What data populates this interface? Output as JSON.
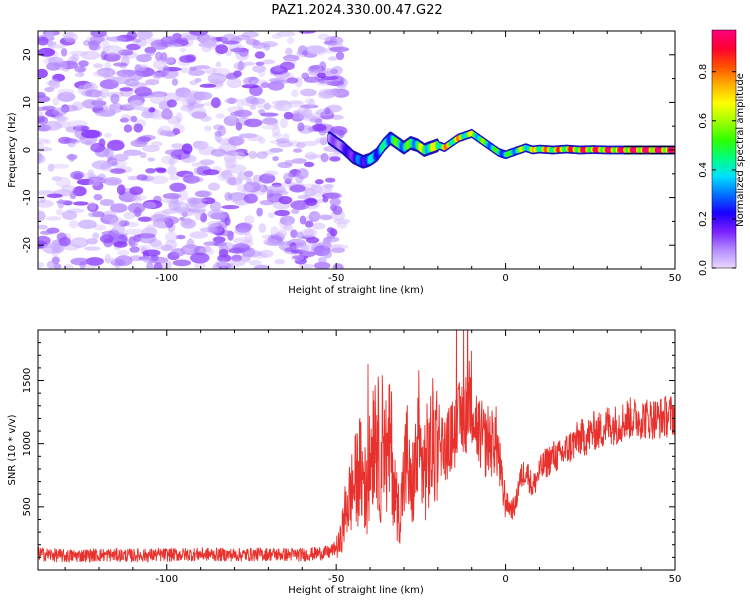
{
  "title": "PAZ1.2024.330.00.47.G22",
  "chart_data": [
    {
      "type": "heatmap",
      "xlabel": "Height of straight line (km)",
      "ylabel": "Frequency (Hz)",
      "xlim": [
        -138,
        50
      ],
      "ylim": [
        -25,
        25
      ],
      "xticks": [
        -100,
        -50,
        0,
        50
      ],
      "yticks": [
        -20,
        -10,
        0,
        10,
        20
      ],
      "colorbar": {
        "label": "Normalized spectral amplitude",
        "range": [
          0,
          0.97
        ],
        "ticks": [
          0.0,
          0.2,
          0.4,
          0.6,
          0.8
        ],
        "colors": [
          "#e8d8ff",
          "#b48cff",
          "#7a1fff",
          "#1a00ff",
          "#0070ff",
          "#00e0ff",
          "#00ff80",
          "#30ff00",
          "#a0ff00",
          "#ffff00",
          "#ffb000",
          "#ff5000",
          "#ff0030",
          "#ff0080"
        ]
      },
      "noise_region": {
        "x_range": [
          -138,
          -48
        ],
        "y_range": [
          -25,
          25
        ],
        "amplitude_range": [
          0.0,
          0.12
        ]
      },
      "ridge": {
        "x": [
          -52,
          -48,
          -45,
          -42,
          -40,
          -38,
          -36,
          -34,
          -32,
          -30,
          -28,
          -26,
          -24,
          -22,
          -20,
          -18,
          -16,
          -14,
          -12,
          -10,
          -8,
          -6,
          -4,
          -2,
          0,
          2,
          4,
          6,
          8,
          10,
          14,
          18,
          22,
          26,
          30,
          35,
          40,
          45,
          50
        ],
        "y": [
          2.5,
          0.5,
          -1.5,
          -2.5,
          -2.0,
          -1.0,
          1.0,
          2.5,
          1.5,
          0.5,
          1.5,
          1.0,
          0.0,
          0.5,
          1.0,
          0.5,
          1.5,
          2.5,
          3.0,
          3.5,
          2.5,
          1.5,
          0.5,
          -0.5,
          -1.0,
          -0.5,
          0.0,
          0.5,
          0.0,
          0.2,
          0.0,
          0.2,
          0.0,
          0.1,
          0.0,
          0.0,
          0.0,
          0.0,
          0.0
        ],
        "amplitude": [
          0.1,
          0.15,
          0.25,
          0.3,
          0.35,
          0.4,
          0.4,
          0.45,
          0.5,
          0.5,
          0.5,
          0.55,
          0.6,
          0.6,
          0.65,
          0.7,
          0.7,
          0.7,
          0.65,
          0.6,
          0.6,
          0.5,
          0.5,
          0.45,
          0.45,
          0.5,
          0.55,
          0.6,
          0.65,
          0.7,
          0.75,
          0.8,
          0.85,
          0.85,
          0.9,
          0.9,
          0.95,
          0.95,
          0.95
        ]
      }
    },
    {
      "type": "line",
      "xlabel": "Height of straight line (km)",
      "ylabel": "SNR (10 * v/v)",
      "xlim": [
        -138,
        50
      ],
      "ylim": [
        0,
        1900
      ],
      "xticks": [
        -100,
        -50,
        0,
        50
      ],
      "yticks": [
        500,
        1000,
        1500
      ],
      "series": [
        {
          "color": "#e8312c",
          "x": [
            -138,
            -130,
            -120,
            -110,
            -100,
            -90,
            -80,
            -70,
            -60,
            -52,
            -49,
            -47,
            -45,
            -43,
            -41,
            -39,
            -38,
            -37,
            -36,
            -35,
            -34,
            -33,
            -32,
            -31,
            -30,
            -29,
            -28,
            -26,
            -24,
            -22,
            -20,
            -18,
            -16,
            -14,
            -12,
            -11,
            -10,
            -9,
            -8,
            -7,
            -6,
            -5,
            -4,
            -3,
            -2,
            -1,
            0,
            1,
            2,
            3,
            4,
            6,
            8,
            10,
            12,
            14,
            16,
            18,
            20,
            22,
            24,
            26,
            28,
            30,
            33,
            36,
            39,
            42,
            45,
            48,
            50
          ],
          "y": [
            130,
            110,
            120,
            115,
            120,
            125,
            120,
            125,
            120,
            140,
            200,
            500,
            650,
            800,
            600,
            1100,
            1200,
            700,
            1250,
            800,
            1050,
            700,
            500,
            450,
            750,
            900,
            600,
            900,
            800,
            950,
            1100,
            950,
            1050,
            1150,
            1250,
            1300,
            1400,
            1200,
            1100,
            1050,
            1000,
            1050,
            1000,
            1050,
            900,
            650,
            550,
            500,
            480,
            520,
            700,
            800,
            650,
            780,
            850,
            900,
            900,
            950,
            1000,
            1050,
            1050,
            1100,
            1100,
            1150,
            1150,
            1200,
            1200,
            1200,
            1200,
            1220,
            1230
          ]
        }
      ]
    }
  ]
}
